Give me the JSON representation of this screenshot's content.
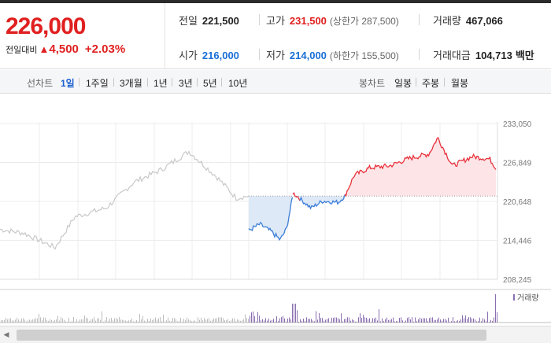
{
  "quote": {
    "price": "226,000",
    "change_label": "전일대비",
    "change_arrow": "▲",
    "change_value": "4,500",
    "change_pct": "+2.03%"
  },
  "stats": {
    "prev_close_label": "전일",
    "prev_close": "221,500",
    "high_label": "고가",
    "high": "231,500",
    "upper_limit": "(상한가 287,500)",
    "volume_label": "거래량",
    "volume": "467,066",
    "open_label": "시가",
    "open": "216,000",
    "low_label": "저가",
    "low": "214,000",
    "lower_limit": "(하한가 155,500)",
    "amount_label": "거래대금",
    "amount": "104,713",
    "amount_unit": "백만"
  },
  "toolbar": {
    "line_chart_label": "선차트",
    "periods": [
      "1일",
      "1주일",
      "3개월",
      "1년",
      "3년",
      "5년",
      "10년"
    ],
    "active_period": "1일",
    "candle_chart_label": "봉차트",
    "candle_periods": [
      "일봉",
      "주봉",
      "월봉"
    ]
  },
  "chart_data": {
    "type": "line",
    "y_ticks": [
      "233,050",
      "226,849",
      "220,648",
      "214,446",
      "208,245"
    ],
    "ylim": [
      208245,
      233050
    ],
    "reference_line": 221500,
    "legend": "거래량",
    "colors": {
      "up": "#e8323c",
      "down": "#3b7dd8",
      "previous": "#c8c8c8",
      "volume_prev": "#bdbdbd",
      "volume_today": "#8a6fb0",
      "up_fill": "#fde5e7",
      "down_fill": "#dde9f7"
    }
  }
}
